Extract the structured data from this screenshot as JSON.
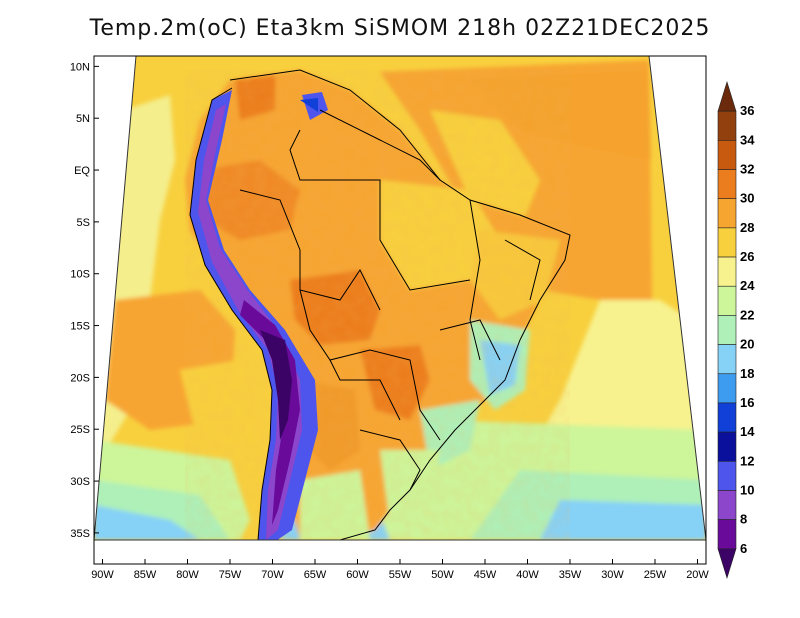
{
  "title": "Temp.2m(oC) Eta3km SiSMOM 218h 02Z21DEC2025",
  "map": {
    "lon_range": [
      -91,
      -19
    ],
    "lat_range": [
      -38,
      11
    ],
    "lat_ticks": [
      {
        "value": 10,
        "label": "10N"
      },
      {
        "value": 5,
        "label": "5N"
      },
      {
        "value": 0,
        "label": "EQ"
      },
      {
        "value": -5,
        "label": "5S"
      },
      {
        "value": -10,
        "label": "10S"
      },
      {
        "value": -15,
        "label": "15S"
      },
      {
        "value": -20,
        "label": "20S"
      },
      {
        "value": -25,
        "label": "25S"
      },
      {
        "value": -30,
        "label": "30S"
      },
      {
        "value": -35,
        "label": "35S"
      }
    ],
    "lon_ticks": [
      {
        "value": -90,
        "label": "90W"
      },
      {
        "value": -85,
        "label": "85W"
      },
      {
        "value": -80,
        "label": "80W"
      },
      {
        "value": -75,
        "label": "75W"
      },
      {
        "value": -70,
        "label": "70W"
      },
      {
        "value": -65,
        "label": "65W"
      },
      {
        "value": -60,
        "label": "60W"
      },
      {
        "value": -55,
        "label": "55W"
      },
      {
        "value": -50,
        "label": "50W"
      },
      {
        "value": -45,
        "label": "45W"
      },
      {
        "value": -40,
        "label": "40W"
      },
      {
        "value": -35,
        "label": "35W"
      },
      {
        "value": -30,
        "label": "30W"
      },
      {
        "value": -25,
        "label": "25W"
      },
      {
        "value": -20,
        "label": "20W"
      }
    ]
  },
  "colorbar": {
    "levels": [
      "36",
      "34",
      "32",
      "30",
      "28",
      "26",
      "24",
      "22",
      "20",
      "18",
      "16",
      "14",
      "12",
      "10",
      "8",
      "6"
    ],
    "colors": [
      "#6b2a0c",
      "#93400f",
      "#c85a10",
      "#ec7d1f",
      "#f7a531",
      "#f8cf3c",
      "#f7f28e",
      "#cdf59a",
      "#aef0b8",
      "#86d1f6",
      "#3e9cf0",
      "#1040d8",
      "#0a0f9c",
      "#4e55ec",
      "#8b46cc",
      "#6a0a9a",
      "#3c0366"
    ]
  }
}
